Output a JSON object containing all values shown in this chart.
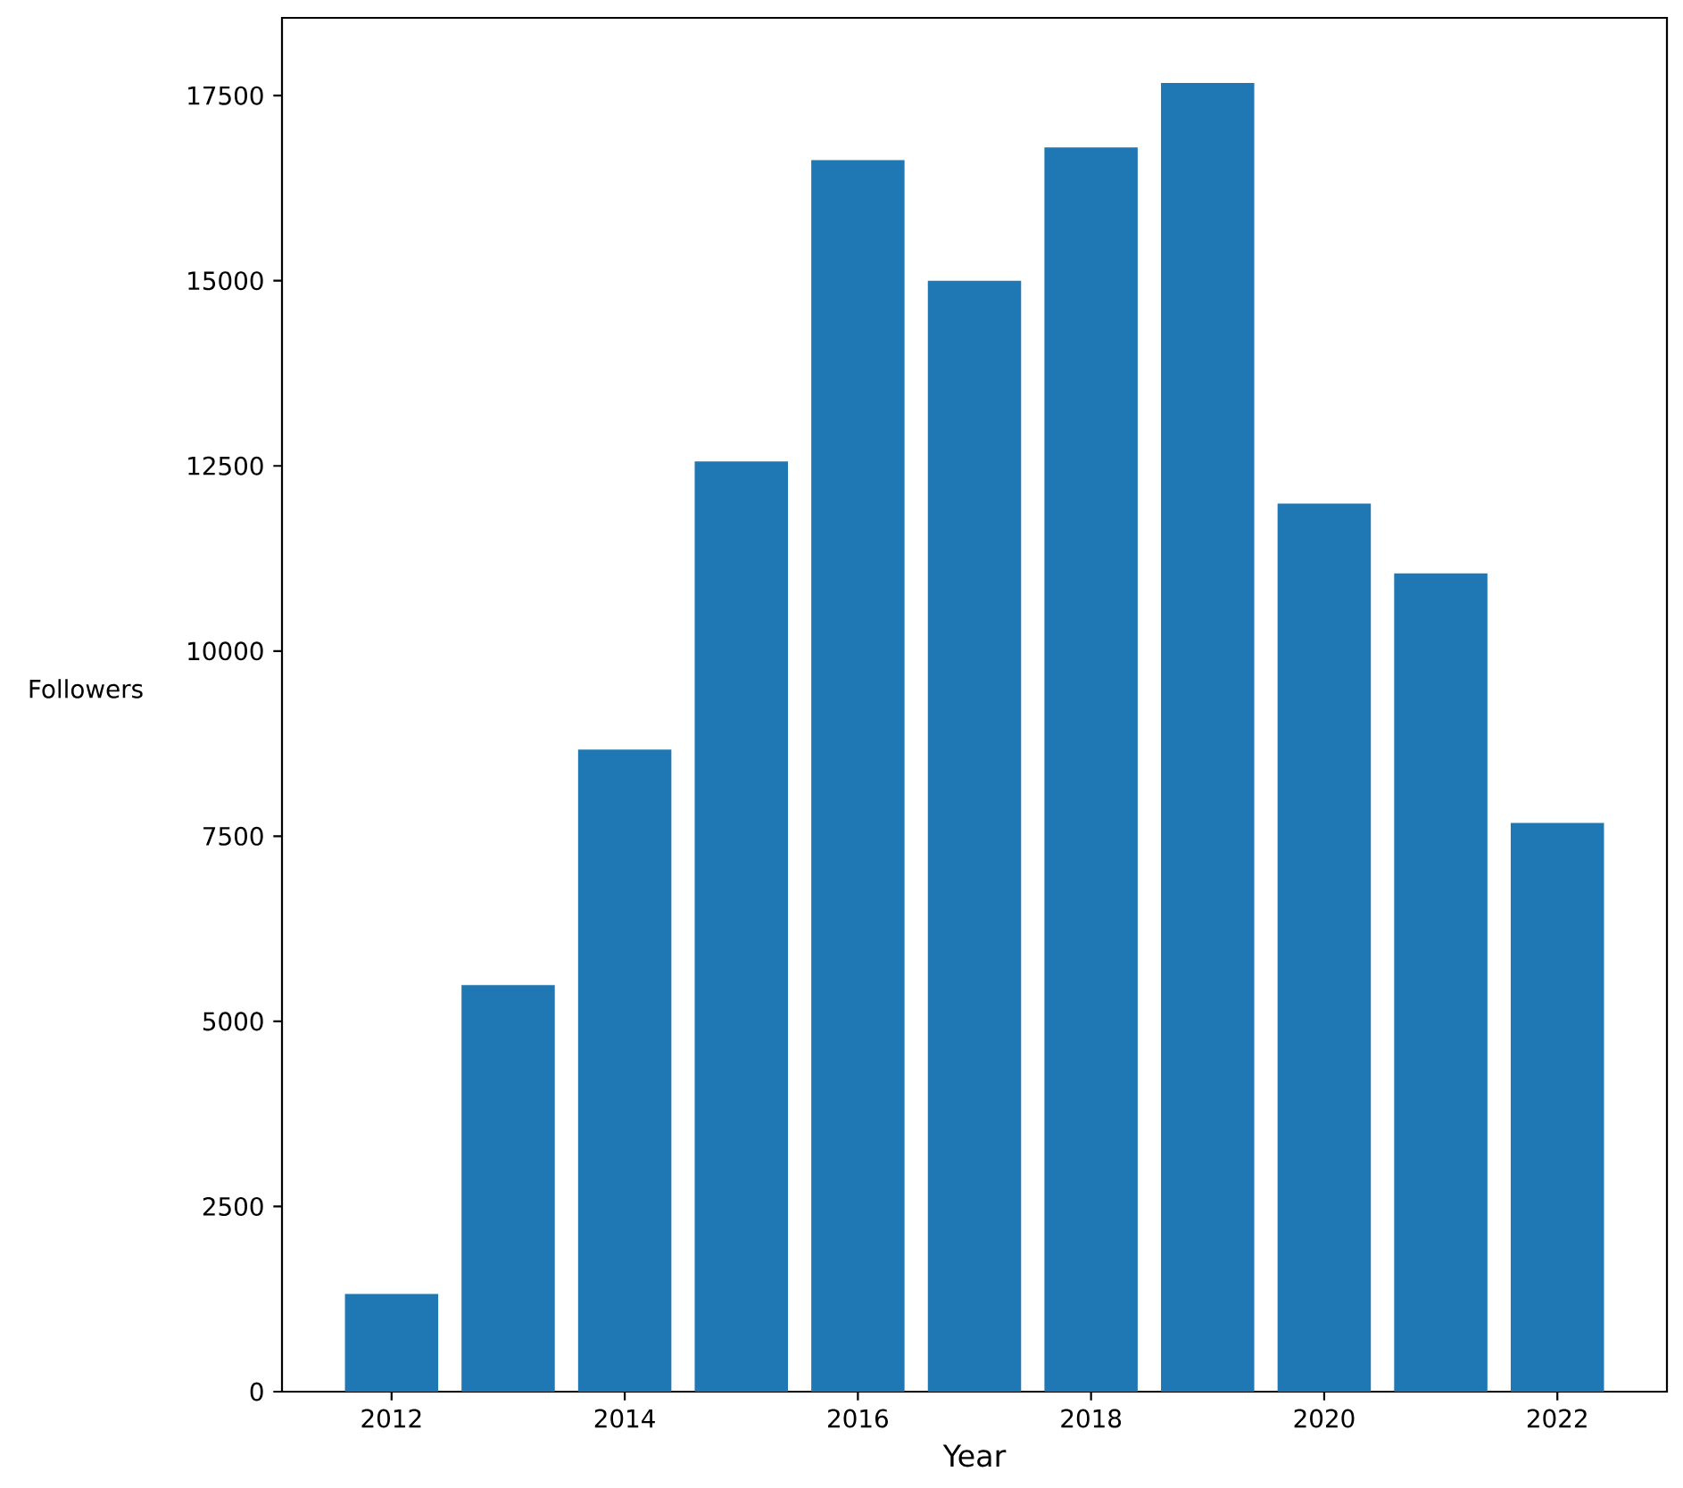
{
  "chart_data": {
    "type": "bar",
    "xlabel": "Year",
    "ylabel": "Followers",
    "x": [
      2012,
      2013,
      2014,
      2015,
      2016,
      2017,
      2018,
      2019,
      2020,
      2021,
      2022
    ],
    "values": [
      1320,
      5490,
      8670,
      12560,
      16630,
      15000,
      16800,
      17670,
      11990,
      11050,
      7680
    ],
    "color": "#1f77b4",
    "xlim": [
      2011.06,
      2022.94
    ],
    "ylim": [
      0,
      18550
    ],
    "xticks": [
      2012,
      2014,
      2016,
      2018,
      2020,
      2022
    ],
    "yticks": [
      0,
      2500,
      5000,
      7500,
      10000,
      12500,
      15000,
      17500
    ]
  }
}
